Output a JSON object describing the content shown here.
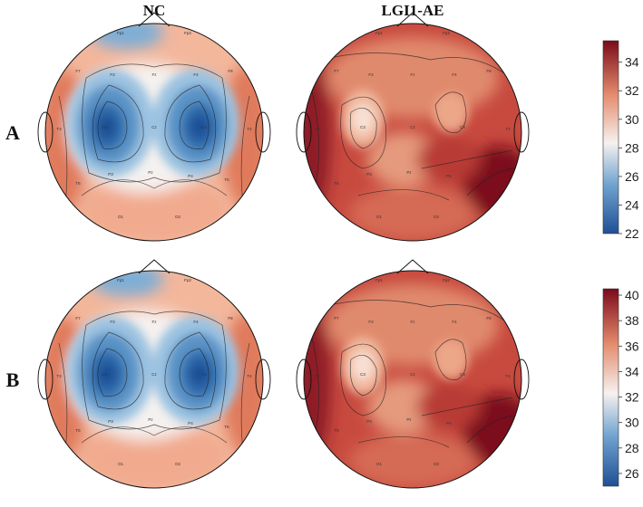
{
  "columns": {
    "nc": "NC",
    "lgi": "LGI1-AE"
  },
  "rows": {
    "a": "A",
    "b": "B"
  },
  "colorbars": {
    "a": {
      "ticks": [
        "34",
        "32",
        "30",
        "28",
        "26",
        "24",
        "22"
      ],
      "min": 22,
      "max": 35.5
    },
    "b": {
      "ticks": [
        "40",
        "38",
        "36",
        "34",
        "32",
        "30",
        "28",
        "26"
      ],
      "min": 25,
      "max": 40.5
    }
  },
  "electrodes": [
    "Fp1",
    "Fp2",
    "F7",
    "F3",
    "Fz",
    "F4",
    "F8",
    "T3",
    "C3",
    "Cz",
    "C4",
    "T4",
    "T5",
    "P3",
    "Pz",
    "P4",
    "T6",
    "O1",
    "O2"
  ],
  "colors": {
    "low": "#1f4f95",
    "mid": "#f6f1ef",
    "high": "#7b0a1a"
  }
}
